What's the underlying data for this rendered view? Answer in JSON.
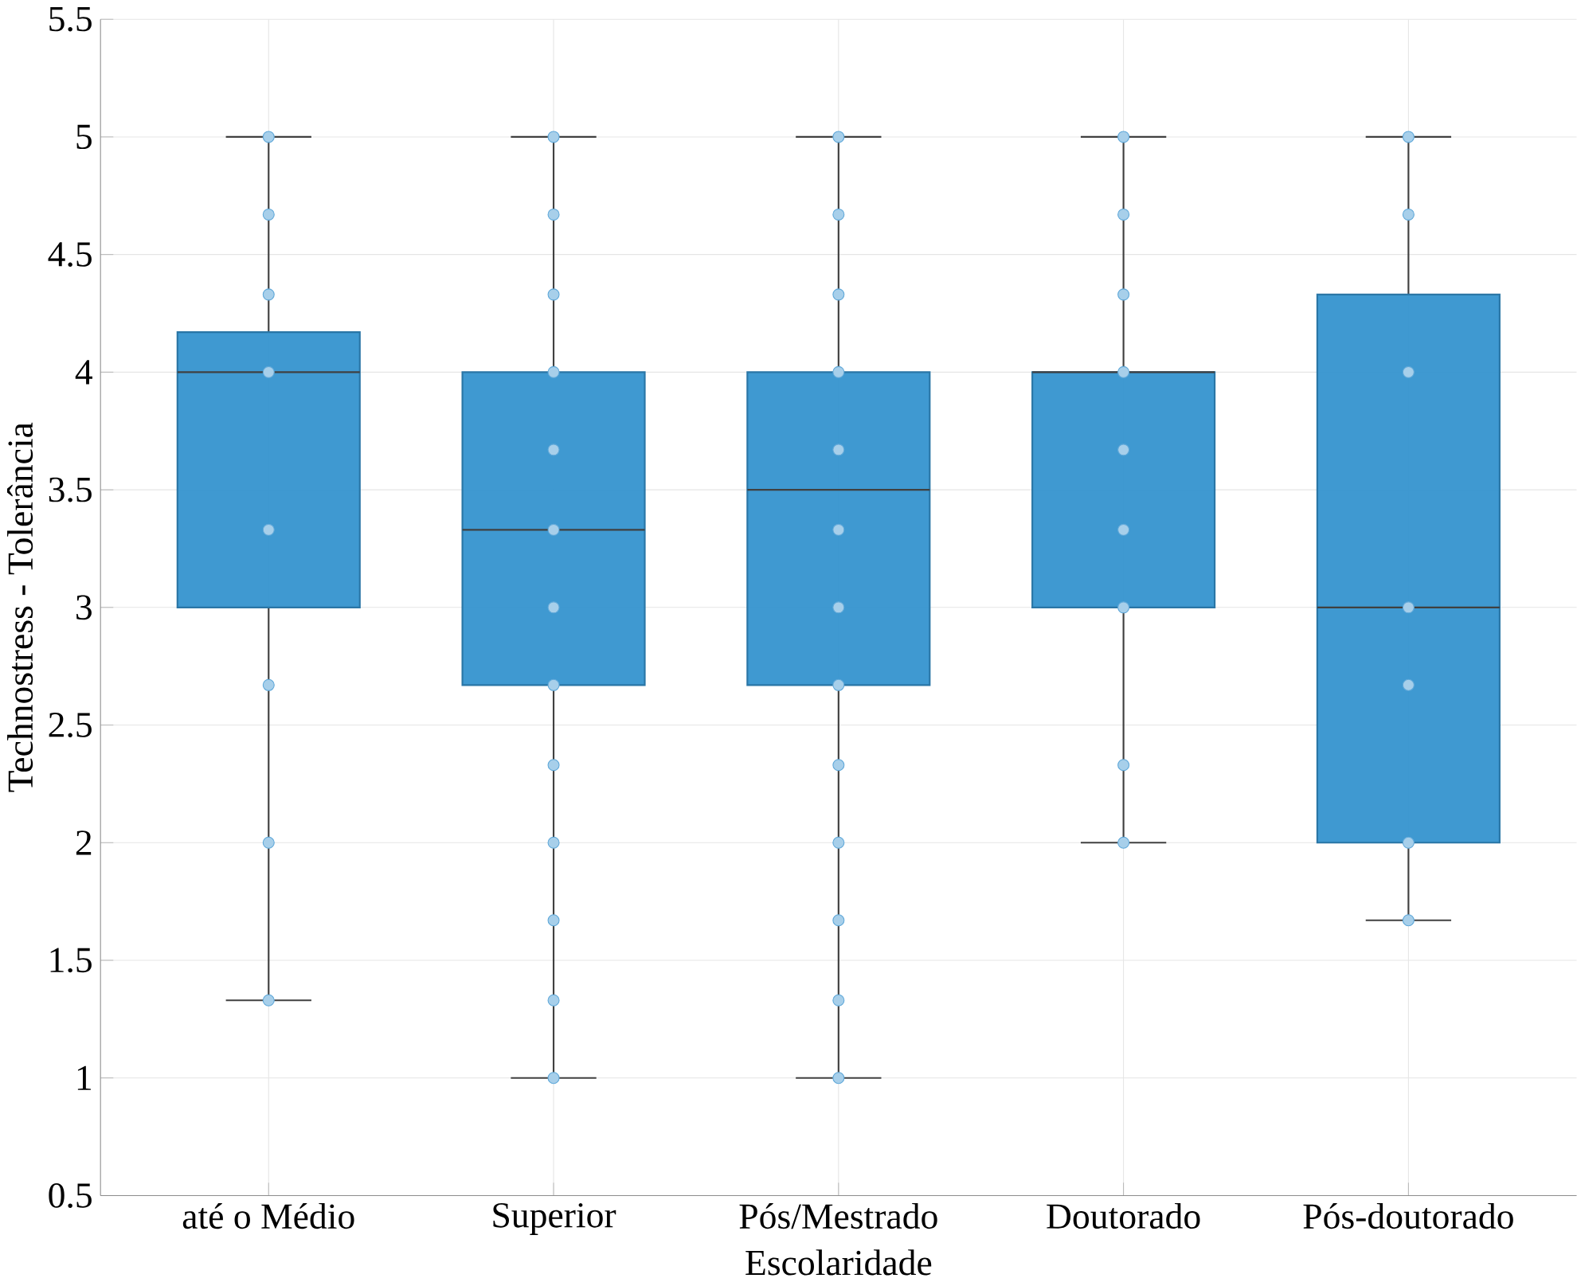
{
  "chart_data": {
    "type": "box",
    "xlabel": "Escolaridade",
    "ylabel": "Technostress - Tolerância",
    "categories": [
      "até o Médio",
      "Superior",
      "Pós/Mestrado",
      "Doutorado",
      "Pós-doutorado"
    ],
    "ylim": [
      0.5,
      5.5
    ],
    "yticks": [
      0.5,
      1,
      1.5,
      2,
      2.5,
      3,
      3.5,
      4,
      4.5,
      5,
      5.5
    ],
    "grid": true,
    "color": "#3593cf",
    "boxes": [
      {
        "low": 1.33,
        "q1": 3,
        "median": 4,
        "q3": 4.17,
        "high": 5
      },
      {
        "low": 1,
        "q1": 2.67,
        "median": 3.33,
        "q3": 4,
        "high": 5
      },
      {
        "low": 1,
        "q1": 2.67,
        "median": 3.5,
        "q3": 4,
        "high": 5
      },
      {
        "low": 2,
        "q1": 3,
        "median": 4,
        "q3": 4,
        "high": 5
      },
      {
        "low": 1.67,
        "q1": 2,
        "median": 3,
        "q3": 4.33,
        "high": 5
      }
    ],
    "series": [
      {
        "type": "scatter",
        "color": "#5fa8d9",
        "marker": "circle",
        "x": [
          "até o Médio",
          "até o Médio",
          "até o Médio",
          "até o Médio",
          "até o Médio",
          "até o Médio",
          "até o Médio",
          "até o Médio",
          "Superior",
          "Superior",
          "Superior",
          "Superior",
          "Superior",
          "Superior",
          "Superior",
          "Superior",
          "Superior",
          "Superior",
          "Superior",
          "Superior",
          "Superior",
          "Pós/Mestrado",
          "Pós/Mestrado",
          "Pós/Mestrado",
          "Pós/Mestrado",
          "Pós/Mestrado",
          "Pós/Mestrado",
          "Pós/Mestrado",
          "Pós/Mestrado",
          "Pós/Mestrado",
          "Pós/Mestrado",
          "Pós/Mestrado",
          "Pós/Mestrado",
          "Pós/Mestrado",
          "Doutorado",
          "Doutorado",
          "Doutorado",
          "Doutorado",
          "Doutorado",
          "Doutorado",
          "Doutorado",
          "Doutorado",
          "Doutorado",
          "Pós-doutorado",
          "Pós-doutorado",
          "Pós-doutorado",
          "Pós-doutorado",
          "Pós-doutorado",
          "Pós-doutorado",
          "Pós-doutorado"
        ],
        "values": [
          1.33,
          2,
          2.67,
          3.33,
          4,
          4.33,
          4.67,
          5,
          1,
          1.33,
          1.67,
          2,
          2.33,
          2.67,
          3,
          3.33,
          3.67,
          4,
          4.33,
          4.67,
          5,
          1,
          1.33,
          1.67,
          2,
          2.33,
          2.67,
          3,
          3.33,
          3.67,
          4,
          4.33,
          4.67,
          5,
          2,
          2.33,
          3,
          3.33,
          3.67,
          4,
          4.33,
          4.67,
          5,
          1.67,
          2,
          2.67,
          3,
          4,
          4.67,
          5
        ]
      }
    ]
  }
}
